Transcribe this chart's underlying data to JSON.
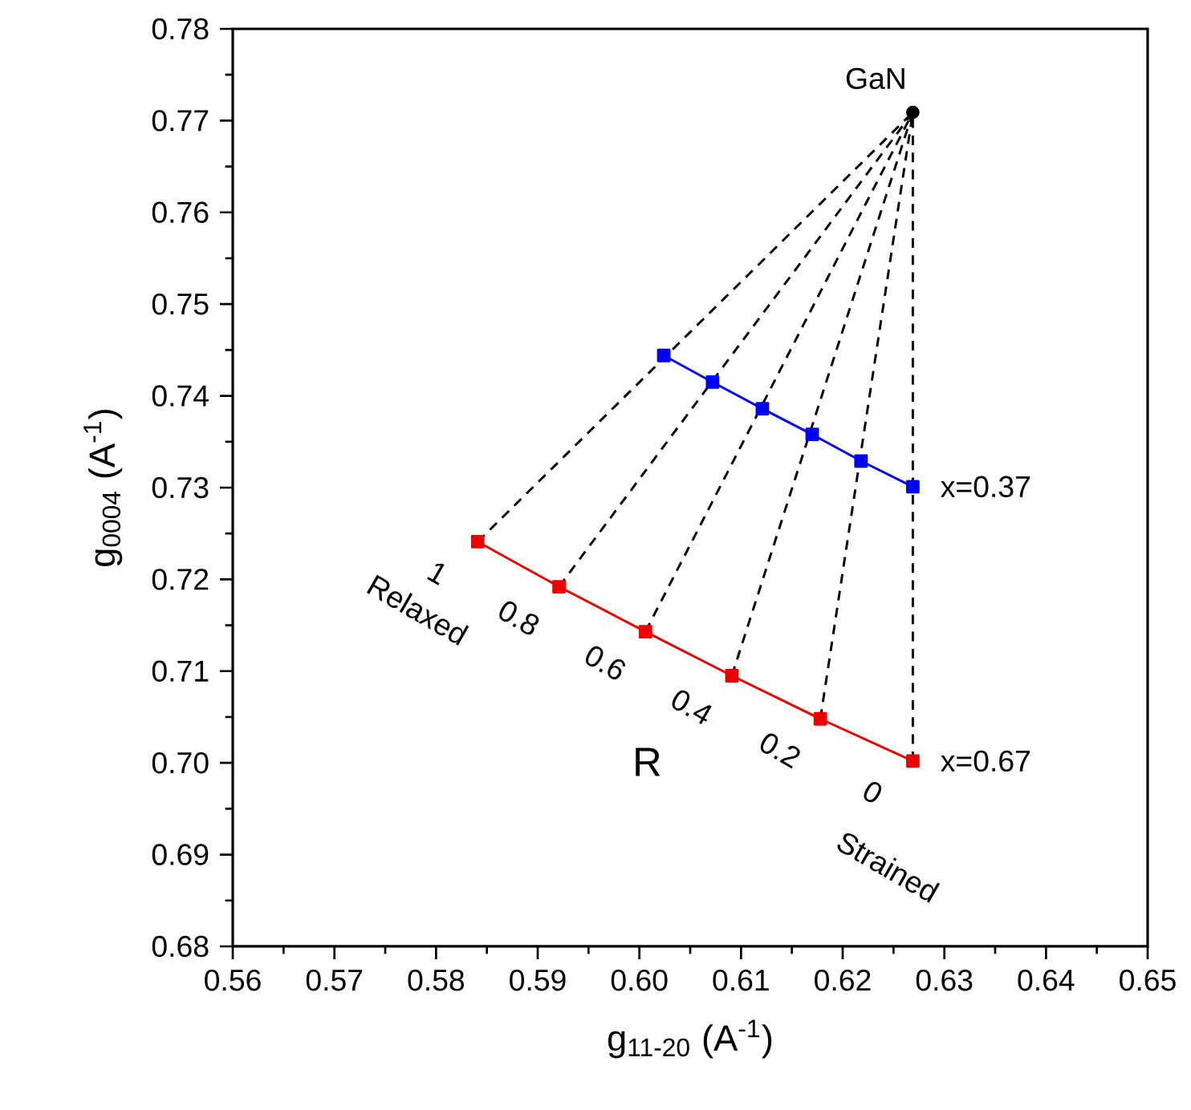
{
  "chart_data": {
    "type": "line",
    "xlabel": "g$_{11-20}$ (A$^{-1}$)",
    "ylabel": "g$_{0004}$ (A$^{-1}$)",
    "xlim": [
      0.56,
      0.65
    ],
    "ylim": [
      0.68,
      0.78
    ],
    "xticks": [
      0.56,
      0.57,
      0.58,
      0.59,
      {
        "value": 0.6,
        "label": "0.60"
      },
      0.61,
      0.62,
      0.63,
      0.64,
      0.65
    ],
    "yticks": [
      0.68,
      0.69,
      {
        "value": 0.7,
        "label": "0.70"
      },
      0.71,
      0.72,
      0.73,
      0.74,
      0.75,
      0.76,
      0.77,
      0.78
    ],
    "series": [
      {
        "color": "#000000",
        "line_style": "dashed",
        "marker": "none",
        "x": [
          0.5841,
          0.6269
        ],
        "values": [
          0.7241,
          0.7709
        ]
      },
      {
        "color": "#000000",
        "line_style": "dashed",
        "marker": "none",
        "x": [
          0.5921,
          0.6269
        ],
        "values": [
          0.7192,
          0.7709
        ]
      },
      {
        "color": "#000000",
        "line_style": "dashed",
        "marker": "none",
        "x": [
          0.6006,
          0.6269
        ],
        "values": [
          0.7143,
          0.7709
        ]
      },
      {
        "color": "#000000",
        "line_style": "dashed",
        "marker": "none",
        "x": [
          0.6091,
          0.6269
        ],
        "values": [
          0.7095,
          0.7709
        ]
      },
      {
        "color": "#000000",
        "line_style": "dashed",
        "marker": "none",
        "x": [
          0.6178,
          0.6269
        ],
        "values": [
          0.7048,
          0.7709
        ]
      },
      {
        "color": "#000000",
        "line_style": "dashed",
        "marker": "none",
        "x": [
          0.6269,
          0.6269
        ],
        "values": [
          0.7002,
          0.7709
        ]
      },
      {
        "color": "#0000ff",
        "line_style": "solid",
        "marker": "square",
        "x": [
          0.6024,
          0.6072,
          0.6121,
          0.617,
          0.6218,
          0.6269
        ],
        "values": [
          0.7444,
          0.7415,
          0.7386,
          0.7358,
          0.7329,
          0.7301
        ]
      },
      {
        "color": "#ee0000",
        "line_style": "solid",
        "marker": "square",
        "x": [
          0.5841,
          0.5921,
          0.6006,
          0.6091,
          0.6178,
          0.6269
        ],
        "values": [
          0.7241,
          0.7192,
          0.7143,
          0.7095,
          0.7048,
          0.7002
        ]
      },
      {
        "type": "scatter",
        "color": "#000000",
        "marker": "circle",
        "x": [
          0.6269
        ],
        "values": [
          0.7709
        ]
      }
    ],
    "annotations": [
      {
        "text": "GaN",
        "x": 0.6269,
        "y": 0.7709
      },
      {
        "text": "x=0.37",
        "x": 0.6269,
        "y": 0.7301
      },
      {
        "text": "x=0.67",
        "x": 0.6269,
        "y": 0.7002
      },
      {
        "text": "1",
        "x": 0.5841,
        "y": 0.7241
      },
      {
        "text": "0.8",
        "x": 0.5921,
        "y": 0.7192
      },
      {
        "text": "0.6",
        "x": 0.6006,
        "y": 0.7143
      },
      {
        "text": "0.4",
        "x": 0.6091,
        "y": 0.7095
      },
      {
        "text": "0.2",
        "x": 0.6178,
        "y": 0.7048
      },
      {
        "text": "0",
        "x": 0.6269,
        "y": 0.7002
      },
      "Relaxed",
      "R",
      "Strained"
    ]
  }
}
